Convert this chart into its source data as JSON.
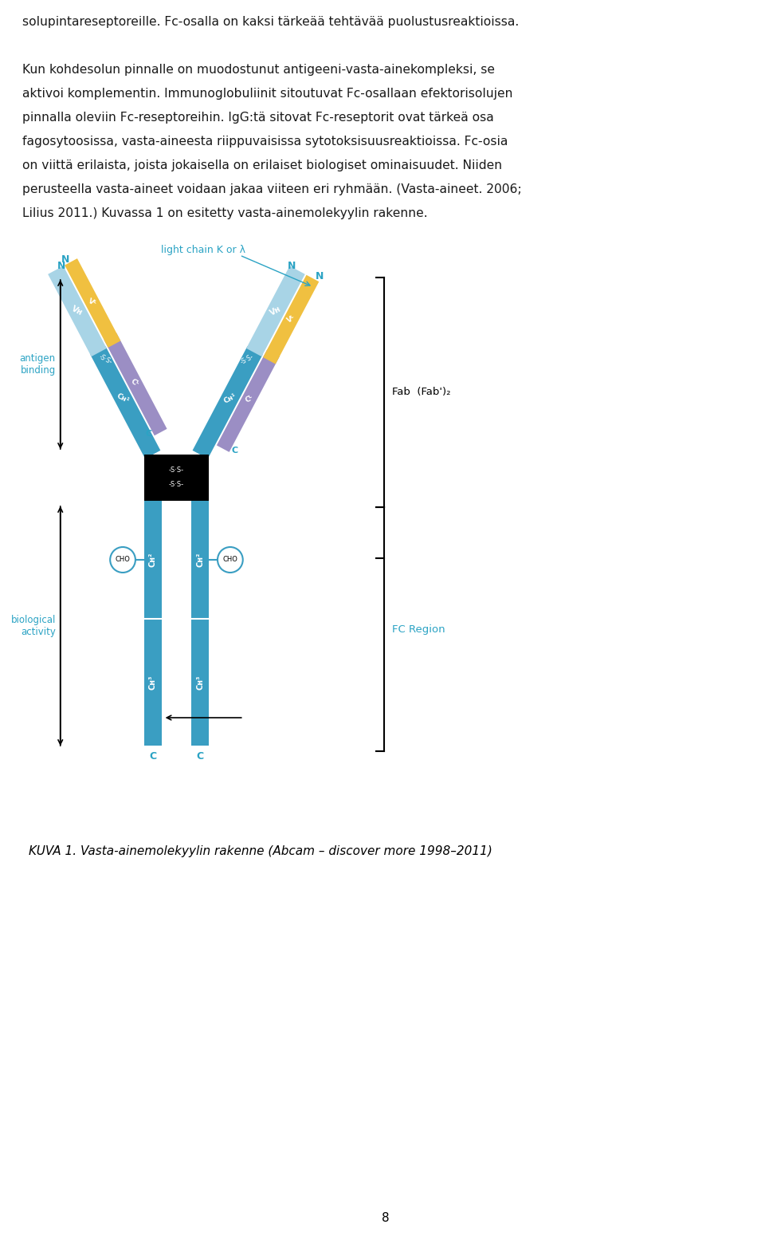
{
  "body_text_lines": [
    "solupintareseptoreille. Fc-osalla on kaksi tärkeää tehtävää puolustusreaktioissa.",
    "",
    "Kun kohdesolun pinnalle on muodostunut antigeeni-vasta-ainekompleksi, se",
    "aktivoi komplementin. Immunoglobuliinit sitoutuvat Fc-osallaan efektorisolujen",
    "pinnalla oleviin Fc-reseptoreihin. IgG:tä sitovat Fc-reseptorit ovat tärkeä osa",
    "fagosytoosissa, vasta-aineesta riippuvaisissa sytotoksisuusreaktioissa. Fc-osia",
    "on viittä erilaista, joista jokaisella on erilaiset biologiset ominaisuudet. Niiden",
    "perusteella vasta-aineet voidaan jakaa viiteen eri ryhmään. (Vasta-aineet. 2006;",
    "Lilius 2011.) Kuvassa 1 on esitetty vasta-ainemolekyylin rakenne."
  ],
  "caption_text": "KUVA 1. Vasta-ainemolekyylin rakenne (Abcam – discover more 1998–2011)",
  "page_number": "8",
  "colors": {
    "mid_blue": "#3A9EC2",
    "pale_blue": "#A8D4E6",
    "yellow": "#F0C040",
    "purple": "#9B8EC4",
    "black": "#000000",
    "white": "#FFFFFF",
    "cyan_text": "#2BA3C4",
    "body_text": "#1A1A1A",
    "background": "#FFFFFF"
  }
}
